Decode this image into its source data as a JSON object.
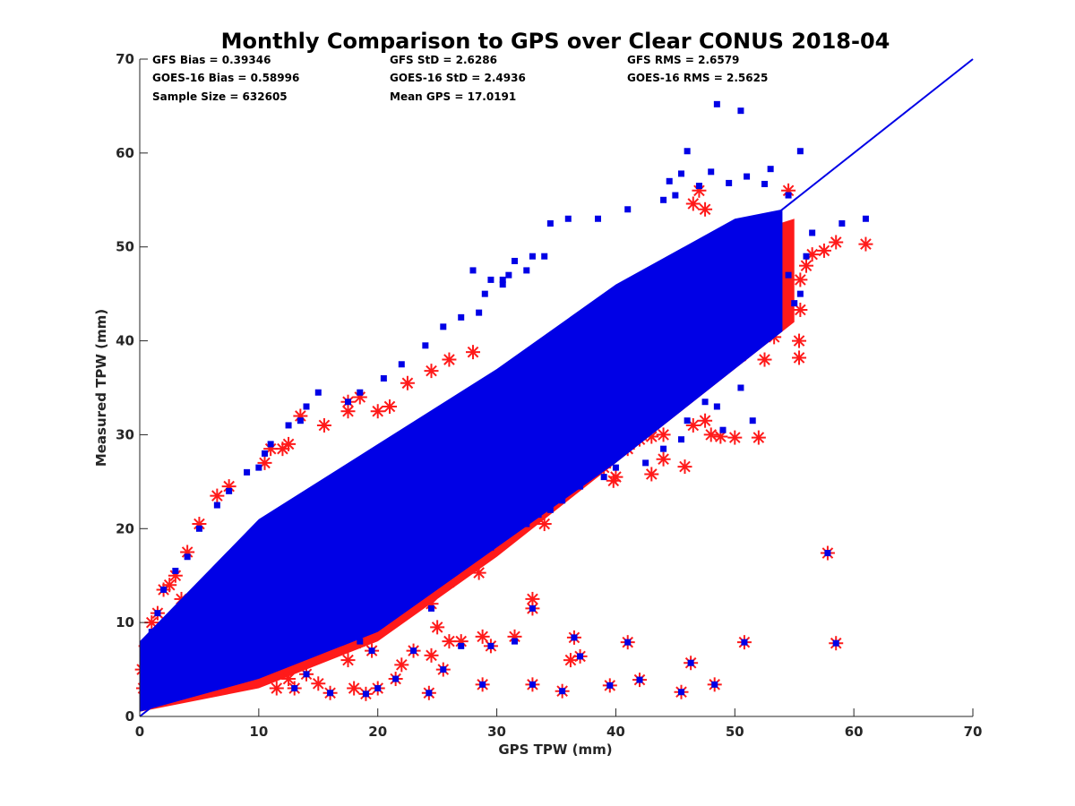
{
  "chart_data": {
    "type": "scatter",
    "title": "Monthly Comparison to GPS over Clear CONUS 2018-04",
    "xlabel": "GPS TPW (mm)",
    "ylabel": "Measured TPW (mm)",
    "xlim": [
      0,
      70
    ],
    "ylim": [
      0,
      70
    ],
    "xticks": [
      "0",
      "10",
      "20",
      "30",
      "40",
      "50",
      "60",
      "70"
    ],
    "yticks": [
      "0",
      "10",
      "20",
      "30",
      "40",
      "50",
      "60",
      "70"
    ],
    "grid": false,
    "legend": "none",
    "stats": [
      [
        "GFS Bias = 0.39346",
        "GFS StD = 2.6286",
        "GFS RMS = 2.6579"
      ],
      [
        "GOES-16 Bias = 0.58996",
        "GOES-16 StD = 2.4936",
        "GOES-16 RMS = 2.5625"
      ],
      [
        "Sample Size = 632605",
        "Mean GPS = 17.0191",
        ""
      ]
    ],
    "reference_line": {
      "x": [
        0,
        70
      ],
      "y": [
        0,
        70
      ],
      "color": "#0000e6"
    },
    "series": [
      {
        "marker": "asterisk",
        "color": "#ff1a1a",
        "dense_cloud": {
          "lower_edge": [
            [
              0,
              0.5
            ],
            [
              10,
              3
            ],
            [
              20,
              8
            ],
            [
              30,
              17
            ],
            [
              40,
              27
            ],
            [
              50,
              37
            ],
            [
              55,
              42
            ]
          ],
          "upper_edge": [
            [
              0,
              8
            ],
            [
              10,
              20
            ],
            [
              20,
              28
            ],
            [
              30,
              36
            ],
            [
              40,
              44
            ],
            [
              50,
              51
            ],
            [
              55,
              53
            ]
          ]
        },
        "points": [
          [
            61,
            50.3
          ],
          [
            58.5,
            50.5
          ],
          [
            57.5,
            49.6
          ],
          [
            56.5,
            49.2
          ],
          [
            55.5,
            43.3
          ],
          [
            55.4,
            38.2
          ],
          [
            55.4,
            40.0
          ],
          [
            53.3,
            40.4
          ],
          [
            52.5,
            38.0
          ],
          [
            50.5,
            38.4
          ],
          [
            52.0,
            29.7
          ],
          [
            50.0,
            29.7
          ],
          [
            48.8,
            29.8
          ],
          [
            48.0,
            30.0
          ],
          [
            45.8,
            26.6
          ],
          [
            44.0,
            27.4
          ],
          [
            43.0,
            25.8
          ],
          [
            40.0,
            25.5
          ],
          [
            39.8,
            25.1
          ],
          [
            37.0,
            25.0
          ],
          [
            38.5,
            28.5
          ],
          [
            35.0,
            23.5
          ],
          [
            34.0,
            20.5
          ],
          [
            31.5,
            20.0
          ],
          [
            30.0,
            19.0
          ],
          [
            29.5,
            21.0
          ],
          [
            26.0,
            16.0
          ],
          [
            27.5,
            16.0
          ],
          [
            28.5,
            15.3
          ],
          [
            26.0,
            14.3
          ],
          [
            57.8,
            17.4
          ],
          [
            58.5,
            7.8
          ],
          [
            50.8,
            7.9
          ],
          [
            46.3,
            5.7
          ],
          [
            45.5,
            2.6
          ],
          [
            48.3,
            3.4
          ],
          [
            42.0,
            3.9
          ],
          [
            39.5,
            3.3
          ],
          [
            41.0,
            7.9
          ],
          [
            37.0,
            6.4
          ],
          [
            36.5,
            8.4
          ],
          [
            36.2,
            6.0
          ],
          [
            35.5,
            2.7
          ],
          [
            33.0,
            12.5
          ],
          [
            33.0,
            11.5
          ],
          [
            33.0,
            3.4
          ],
          [
            31.5,
            8.5
          ],
          [
            29.5,
            7.5
          ],
          [
            28.8,
            8.5
          ],
          [
            28.8,
            3.4
          ],
          [
            27.0,
            8.0
          ],
          [
            25.0,
            9.5
          ],
          [
            26.0,
            8.0
          ],
          [
            24.5,
            6.5
          ],
          [
            25.5,
            5.0
          ],
          [
            24.3,
            2.5
          ],
          [
            24.5,
            12.0
          ],
          [
            23.0,
            7.0
          ],
          [
            22.0,
            5.5
          ],
          [
            21.5,
            4.0
          ],
          [
            20.0,
            3.0
          ],
          [
            19.0,
            2.4
          ],
          [
            18.0,
            3.0
          ],
          [
            17.5,
            6.0
          ],
          [
            16.0,
            2.5
          ],
          [
            15.0,
            3.5
          ],
          [
            14.0,
            4.5
          ],
          [
            13.0,
            3.0
          ],
          [
            12.5,
            4.0
          ],
          [
            11.5,
            3.0
          ],
          [
            19.5,
            7.0
          ],
          [
            18.5,
            8.0
          ],
          [
            17.0,
            9.0
          ],
          [
            16.0,
            9.0
          ],
          [
            19.0,
            11.5
          ],
          [
            20.5,
            12.5
          ],
          [
            18.5,
            34.0
          ],
          [
            17.5,
            33.5
          ],
          [
            17.5,
            32.5
          ],
          [
            15.5,
            31.0
          ],
          [
            13.5,
            32.0
          ],
          [
            12.5,
            29.0
          ],
          [
            12.0,
            28.5
          ],
          [
            11.0,
            28.5
          ],
          [
            10.5,
            27.0
          ],
          [
            3.5,
            12.5
          ],
          [
            2.0,
            13.5
          ],
          [
            1.5,
            11.0
          ],
          [
            1.0,
            10.0
          ],
          [
            0.5,
            7.5
          ],
          [
            0.2,
            5.0
          ],
          [
            0.3,
            3.0
          ],
          [
            55.5,
            46.5
          ],
          [
            56.0,
            48.0
          ],
          [
            54.5,
            56.0
          ],
          [
            47.5,
            54.0
          ],
          [
            46.5,
            54.6
          ],
          [
            47.0,
            56.0
          ],
          [
            50.8,
            49.6
          ],
          [
            53.5,
            47.8
          ],
          [
            53.8,
            46.4
          ],
          [
            53.5,
            44.2
          ],
          [
            52.5,
            42.3
          ],
          [
            51.0,
            41.6
          ],
          [
            50.0,
            40.9
          ],
          [
            51.0,
            39.2
          ],
          [
            49.0,
            38.5
          ],
          [
            48.5,
            37.4
          ],
          [
            46.5,
            34.5
          ],
          [
            46.0,
            35.5
          ],
          [
            45.0,
            34.8
          ],
          [
            44.5,
            33.6
          ],
          [
            47.5,
            31.5
          ],
          [
            46.5,
            31.0
          ],
          [
            44.0,
            30.0
          ],
          [
            43.0,
            29.8
          ],
          [
            42.0,
            29.5
          ],
          [
            41.0,
            28.5
          ],
          [
            39.0,
            26.5
          ],
          [
            38.0,
            26.0
          ],
          [
            36.5,
            25.0
          ],
          [
            35.5,
            24.0
          ],
          [
            34.5,
            22.5
          ],
          [
            33.5,
            22.0
          ],
          [
            32.0,
            21.0
          ],
          [
            28.0,
            38.8
          ],
          [
            26.0,
            38.0
          ],
          [
            24.5,
            36.8
          ],
          [
            22.5,
            35.5
          ],
          [
            21.0,
            33.0
          ],
          [
            20.0,
            32.5
          ],
          [
            7.5,
            24.5
          ],
          [
            6.5,
            23.5
          ],
          [
            5.0,
            20.5
          ],
          [
            4.0,
            17.5
          ],
          [
            3.0,
            15.0
          ],
          [
            2.5,
            14.0
          ]
        ]
      },
      {
        "marker": "square",
        "color": "#0000e6",
        "dense_cloud": {
          "lower_edge": [
            [
              0,
              0.5
            ],
            [
              10,
              4
            ],
            [
              20,
              9
            ],
            [
              30,
              18
            ],
            [
              40,
              27
            ],
            [
              50,
              37
            ],
            [
              54,
              41
            ]
          ],
          "upper_edge": [
            [
              0,
              8
            ],
            [
              10,
              21
            ],
            [
              20,
              29
            ],
            [
              30,
              37
            ],
            [
              40,
              46
            ],
            [
              50,
              53
            ],
            [
              54,
              54
            ]
          ]
        },
        "points": [
          [
            48.5,
            65.2
          ],
          [
            50.5,
            64.5
          ],
          [
            46.0,
            60.2
          ],
          [
            55.5,
            60.2
          ],
          [
            53.0,
            58.3
          ],
          [
            48.0,
            58.0
          ],
          [
            45.5,
            57.8
          ],
          [
            51.0,
            57.5
          ],
          [
            47.0,
            56.5
          ],
          [
            49.5,
            56.8
          ],
          [
            52.5,
            56.7
          ],
          [
            44.5,
            57.0
          ],
          [
            45.0,
            55.5
          ],
          [
            54.5,
            55.5
          ],
          [
            61.0,
            53.0
          ],
          [
            59.0,
            52.5
          ],
          [
            56.5,
            51.5
          ],
          [
            56.0,
            49.0
          ],
          [
            55.5,
            45.0
          ],
          [
            55.0,
            44.0
          ],
          [
            54.5,
            47.0
          ],
          [
            44.0,
            55.0
          ],
          [
            41.0,
            54.0
          ],
          [
            38.5,
            53.0
          ],
          [
            36.0,
            53.0
          ],
          [
            34.5,
            52.5
          ],
          [
            34.0,
            49.0
          ],
          [
            33.0,
            49.0
          ],
          [
            31.5,
            48.5
          ],
          [
            31.0,
            47.0
          ],
          [
            32.5,
            47.5
          ],
          [
            30.5,
            46.5
          ],
          [
            29.0,
            45.0
          ],
          [
            28.0,
            47.5
          ],
          [
            29.5,
            46.5
          ],
          [
            30.5,
            46.0
          ],
          [
            28.5,
            43.0
          ],
          [
            27.0,
            42.5
          ],
          [
            25.5,
            41.5
          ],
          [
            24.0,
            39.5
          ],
          [
            22.0,
            37.5
          ],
          [
            20.5,
            36.0
          ],
          [
            18.5,
            34.5
          ],
          [
            17.5,
            33.5
          ],
          [
            15.0,
            34.5
          ],
          [
            14.0,
            33.0
          ],
          [
            13.5,
            31.5
          ],
          [
            12.5,
            31.0
          ],
          [
            11.0,
            29.0
          ],
          [
            10.5,
            28.0
          ],
          [
            50.0,
            47.0
          ],
          [
            51.5,
            43.0
          ],
          [
            52.0,
            41.0
          ],
          [
            51.5,
            40.0
          ],
          [
            50.0,
            39.5
          ],
          [
            50.5,
            35.0
          ],
          [
            51.5,
            31.5
          ],
          [
            49.0,
            30.5
          ],
          [
            48.5,
            33.0
          ],
          [
            47.5,
            33.5
          ],
          [
            46.0,
            31.5
          ],
          [
            45.5,
            29.5
          ],
          [
            44.0,
            28.5
          ],
          [
            42.5,
            27.0
          ],
          [
            40.0,
            26.5
          ],
          [
            39.0,
            25.5
          ],
          [
            37.0,
            24.5
          ],
          [
            35.5,
            23.0
          ],
          [
            34.5,
            22.0
          ],
          [
            33.5,
            21.5
          ],
          [
            32.5,
            20.5
          ],
          [
            29.5,
            18.0
          ],
          [
            28.0,
            17.5
          ],
          [
            26.5,
            16.5
          ],
          [
            25.0,
            15.5
          ],
          [
            24.0,
            13.5
          ],
          [
            23.0,
            14.5
          ],
          [
            22.5,
            13.0
          ],
          [
            21.0,
            12.0
          ],
          [
            20.0,
            11.0
          ],
          [
            57.8,
            17.4
          ],
          [
            58.5,
            7.8
          ],
          [
            50.8,
            7.9
          ],
          [
            46.3,
            5.7
          ],
          [
            45.5,
            2.6
          ],
          [
            48.3,
            3.4
          ],
          [
            42.0,
            3.9
          ],
          [
            39.5,
            3.3
          ],
          [
            41.0,
            7.9
          ],
          [
            37.0,
            6.4
          ],
          [
            36.5,
            8.4
          ],
          [
            35.5,
            2.7
          ],
          [
            33.0,
            11.5
          ],
          [
            33.0,
            3.4
          ],
          [
            31.5,
            8.0
          ],
          [
            29.5,
            7.5
          ],
          [
            28.8,
            3.4
          ],
          [
            27.0,
            7.5
          ],
          [
            25.5,
            5.0
          ],
          [
            24.3,
            2.5
          ],
          [
            24.5,
            11.5
          ],
          [
            23.0,
            7.0
          ],
          [
            21.5,
            4.0
          ],
          [
            20.0,
            3.0
          ],
          [
            19.0,
            2.4
          ],
          [
            16.0,
            2.5
          ],
          [
            14.0,
            4.5
          ],
          [
            13.0,
            3.0
          ],
          [
            19.5,
            7.0
          ],
          [
            18.5,
            8.0
          ],
          [
            17.0,
            9.0
          ],
          [
            19.0,
            11.0
          ],
          [
            20.5,
            12.0
          ],
          [
            2.0,
            13.5
          ],
          [
            1.5,
            11.0
          ],
          [
            3.0,
            15.5
          ],
          [
            4.0,
            17.0
          ],
          [
            5.0,
            20.0
          ],
          [
            6.5,
            22.5
          ],
          [
            7.5,
            24.0
          ],
          [
            9.0,
            26.0
          ],
          [
            10.0,
            26.5
          ],
          [
            1.0,
            9.0
          ],
          [
            0.5,
            6.5
          ]
        ]
      }
    ]
  }
}
